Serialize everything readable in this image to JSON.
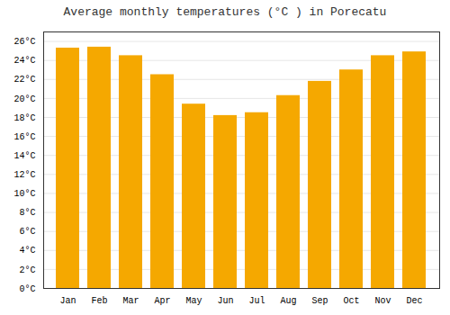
{
  "chart_data": {
    "type": "bar",
    "title": "Average monthly temperatures (°C ) in Porecatu",
    "categories": [
      "Jan",
      "Feb",
      "Mar",
      "Apr",
      "May",
      "Jun",
      "Jul",
      "Aug",
      "Sep",
      "Oct",
      "Nov",
      "Dec"
    ],
    "values": [
      25.3,
      25.4,
      24.5,
      22.5,
      19.4,
      18.2,
      18.5,
      20.3,
      21.8,
      23.0,
      24.5,
      24.9
    ],
    "color": "#F5A800",
    "ylim": [
      0,
      27
    ],
    "yticks": [
      {
        "value": 0,
        "label": "0°C"
      },
      {
        "value": 2,
        "label": "2°C"
      },
      {
        "value": 4,
        "label": "4°C"
      },
      {
        "value": 6,
        "label": "6°C"
      },
      {
        "value": 8,
        "label": "8°C"
      },
      {
        "value": 10,
        "label": "10°C"
      },
      {
        "value": 12,
        "label": "12°C"
      },
      {
        "value": 14,
        "label": "14°C"
      },
      {
        "value": 16,
        "label": "16°C"
      },
      {
        "value": 18,
        "label": "18°C"
      },
      {
        "value": 20,
        "label": "20°C"
      },
      {
        "value": 22,
        "label": "22°C"
      },
      {
        "value": 24,
        "label": "24°C"
      },
      {
        "value": 26,
        "label": "26°C"
      }
    ],
    "grid": true
  }
}
